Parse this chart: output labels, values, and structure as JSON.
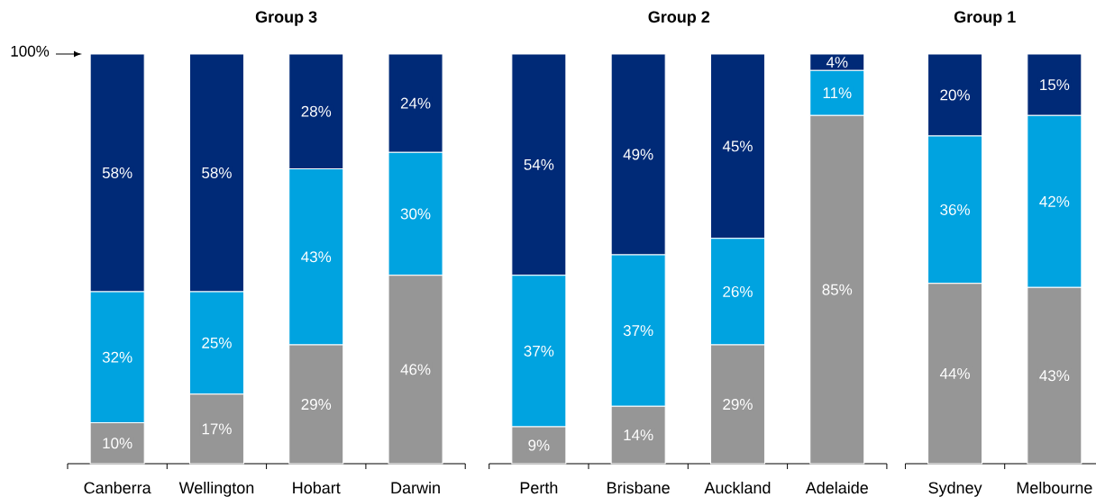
{
  "chart_data": [
    {
      "type": "bar",
      "stacked": true,
      "title": "Group 3",
      "categories": [
        "Canberra",
        "Wellington",
        "Hobart",
        "Darwin"
      ],
      "series": [
        {
          "color": "#969696",
          "values": [
            10,
            17,
            29,
            46
          ],
          "value_labels": [
            "10%",
            "17%",
            "29%",
            "46%"
          ]
        },
        {
          "color": "#00a3e0",
          "values": [
            32,
            25,
            43,
            30
          ],
          "value_labels": [
            "32%",
            "25%",
            "43%",
            "30%"
          ]
        },
        {
          "color": "#002a77",
          "values": [
            58,
            58,
            28,
            24
          ],
          "value_labels": [
            "58%",
            "58%",
            "28%",
            "24%"
          ]
        }
      ],
      "annotations": [
        "100%"
      ]
    },
    {
      "type": "bar",
      "stacked": true,
      "title": "Group 2",
      "categories": [
        "Perth",
        "Brisbane",
        "Auckland",
        "Adelaide"
      ],
      "series": [
        {
          "color": "#969696",
          "values": [
            9,
            14,
            29,
            85
          ],
          "value_labels": [
            "9%",
            "14%",
            "29%",
            "85%"
          ]
        },
        {
          "color": "#00a3e0",
          "values": [
            37,
            37,
            26,
            11
          ],
          "value_labels": [
            "37%",
            "37%",
            "26%",
            "11%"
          ]
        },
        {
          "color": "#002a77",
          "values": [
            54,
            49,
            45,
            4
          ],
          "value_labels": [
            "54%",
            "49%",
            "45%",
            "4%"
          ]
        }
      ]
    },
    {
      "type": "bar",
      "stacked": true,
      "title": "Group 1",
      "categories": [
        "Sydney",
        "Melbourne"
      ],
      "series": [
        {
          "color": "#969696",
          "values": [
            44,
            43
          ],
          "value_labels": [
            "44%",
            "43%"
          ]
        },
        {
          "color": "#00a3e0",
          "values": [
            36,
            42
          ],
          "value_labels": [
            "36%",
            "42%"
          ]
        },
        {
          "color": "#002a77",
          "values": [
            20,
            15
          ],
          "value_labels": [
            "20%",
            "15%"
          ]
        }
      ]
    }
  ]
}
